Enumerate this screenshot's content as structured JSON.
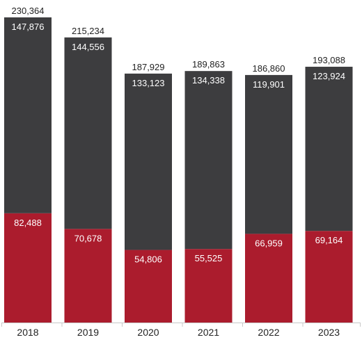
{
  "chart_data": {
    "type": "bar",
    "stacked": true,
    "categories": [
      "2018",
      "2019",
      "2020",
      "2021",
      "2022",
      "2023"
    ],
    "series": [
      {
        "values": [
          82488,
          70678,
          54806,
          55525,
          66959,
          69164
        ],
        "color": "#ab1c2d"
      },
      {
        "values": [
          147876,
          144556,
          133123,
          134338,
          119901,
          123924
        ],
        "color": "#3d3d3f"
      }
    ],
    "totals": [
      230364,
      215234,
      187929,
      189863,
      186860,
      193088
    ],
    "title": "",
    "xlabel": "",
    "ylabel": "",
    "ylim": [
      0,
      230364
    ],
    "grid": false,
    "legend": "none",
    "axis_color": "#c8c8c8"
  }
}
